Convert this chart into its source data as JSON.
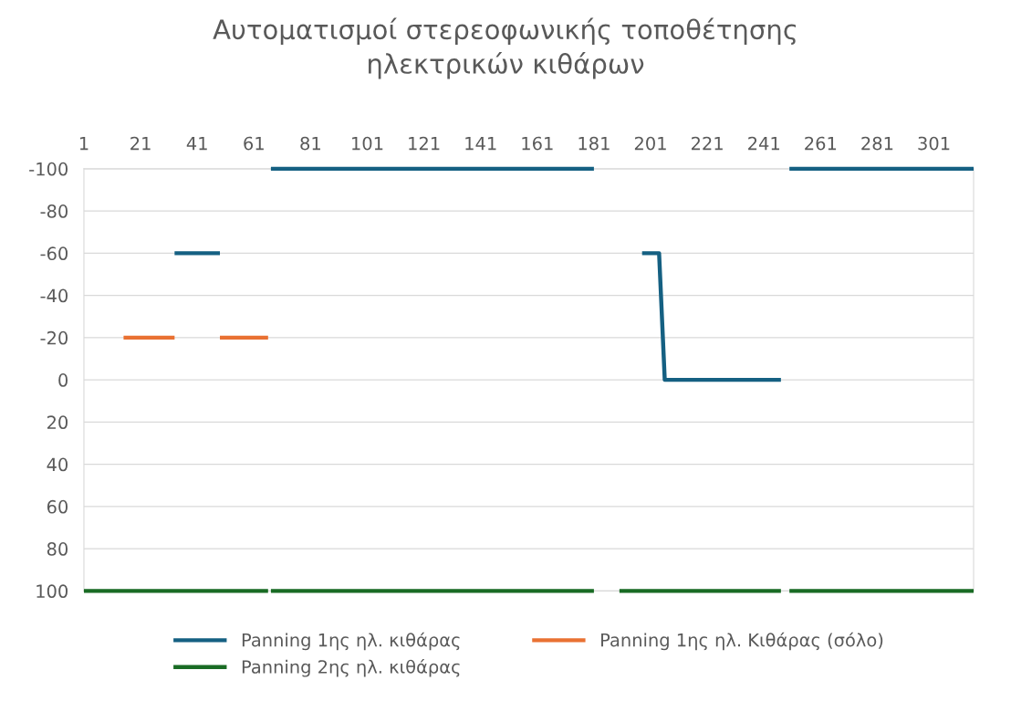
{
  "chart_data": {
    "type": "line",
    "title": "Αυτοματισμοί στερεοφωνικής τοποθέτησης\nηλεκτρικών κιθάρων",
    "xlim": [
      1,
      315
    ],
    "xticks": [
      1,
      21,
      41,
      61,
      81,
      101,
      121,
      141,
      161,
      181,
      201,
      221,
      241,
      261,
      281,
      301
    ],
    "ylim": [
      100,
      -100
    ],
    "yticks": [
      -100,
      -80,
      -60,
      -40,
      -20,
      0,
      20,
      40,
      60,
      80,
      100
    ],
    "grid": "y",
    "legend": "bottom",
    "marker": "none",
    "line_style": "solid",
    "series": [
      {
        "name": "Panning 1ης ηλ. κιθάρας",
        "color": "#156082",
        "x": [
          33,
          49,
          58,
          67,
          181,
          190,
          198,
          204,
          206,
          247,
          249,
          250,
          315
        ],
        "values": [
          -60,
          -60,
          null,
          -100,
          -100,
          null,
          -60,
          -60,
          0,
          0,
          null,
          -100,
          -100
        ]
      },
      {
        "name": "Panning 1ης ηλ. Κιθάρας (σόλο)",
        "color": "#e97132",
        "x": [
          15,
          33,
          41,
          49,
          66
        ],
        "values": [
          -20,
          -20,
          null,
          -20,
          -20
        ]
      },
      {
        "name": "Panning 2ης ηλ. κιθάρας",
        "color": "#196b24",
        "x": [
          1,
          66,
          66.5,
          67,
          181,
          185,
          190,
          247,
          249,
          250,
          315
        ],
        "values": [
          100,
          100,
          null,
          100,
          100,
          null,
          100,
          100,
          null,
          100,
          100
        ]
      }
    ]
  }
}
